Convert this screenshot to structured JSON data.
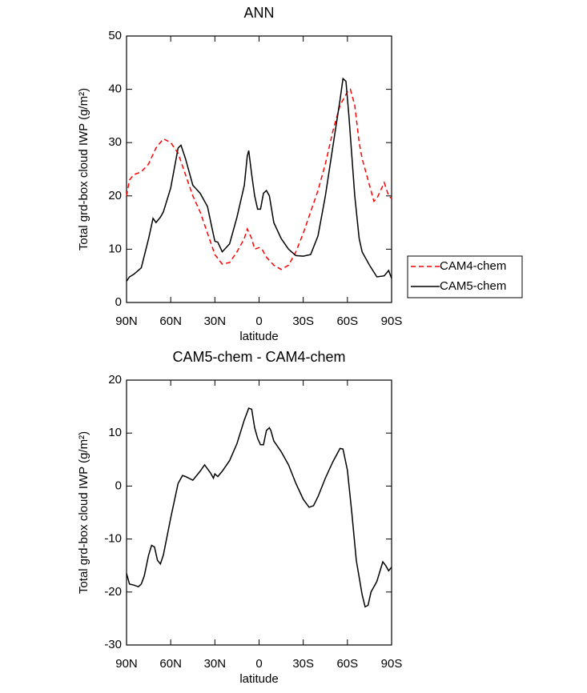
{
  "chart_data": [
    {
      "type": "line",
      "title": "ANN",
      "xlabel": "latitude",
      "ylabel": "Total grd-box cloud IWP (g/m²)",
      "xlim": [
        90,
        -90
      ],
      "xticks": [
        {
          "value": 90,
          "label": "90N"
        },
        {
          "value": 60,
          "label": "60N"
        },
        {
          "value": 30,
          "label": "30N"
        },
        0,
        {
          "value": -30,
          "label": "30S"
        },
        {
          "value": -60,
          "label": "60S"
        },
        {
          "value": -90,
          "label": "90S"
        }
      ],
      "ylim": [
        0,
        50
      ],
      "yticks": [
        0,
        10,
        20,
        30,
        40,
        50
      ],
      "legend": "right",
      "series": [
        {
          "name": "CAM4-chem",
          "color": "#ff0000",
          "line_style": "dashed",
          "x": [
            90,
            88,
            85,
            80,
            75,
            70,
            65,
            60,
            55,
            50,
            45,
            40,
            35,
            30,
            25,
            20,
            15,
            10,
            8,
            5,
            3,
            0,
            -2,
            -5,
            -10,
            -15,
            -20,
            -25,
            -30,
            -35,
            -40,
            -45,
            -50,
            -55,
            -60,
            -62,
            -65,
            -68,
            -70,
            -75,
            -78,
            -80,
            -85,
            -88,
            -90
          ],
          "values": [
            20,
            23,
            24,
            24.5,
            26,
            29,
            30.7,
            30,
            28,
            24,
            20,
            17,
            13,
            9,
            7.2,
            7.5,
            9.5,
            12,
            13.8,
            12,
            10,
            10.3,
            10,
            8.5,
            7,
            6.2,
            7,
            9.5,
            13,
            17,
            21,
            26,
            32,
            37,
            39.5,
            40,
            37,
            30,
            27,
            22,
            19,
            19.5,
            22.5,
            20,
            19.5
          ]
        },
        {
          "name": "CAM5-chem",
          "color": "#000000",
          "line_style": "solid",
          "x": [
            90,
            88,
            85,
            80,
            75,
            72,
            70,
            67,
            65,
            60,
            55,
            53,
            50,
            45,
            40,
            35,
            32,
            30,
            28,
            25,
            20,
            15,
            10,
            8,
            7,
            5,
            3,
            1,
            -1,
            -3,
            -5,
            -7,
            -10,
            -15,
            -20,
            -25,
            -30,
            -35,
            -40,
            -45,
            -50,
            -55,
            -57,
            -59,
            -61,
            -65,
            -68,
            -70,
            -75,
            -80,
            -85,
            -88,
            -90
          ],
          "values": [
            4,
            4.8,
            5.3,
            6.5,
            12,
            15.8,
            15,
            16,
            17,
            21.5,
            29,
            29.5,
            27,
            22,
            20.5,
            18,
            14,
            11.5,
            11.3,
            9.5,
            11,
            16,
            22,
            27.5,
            28.5,
            24,
            20,
            17.5,
            17.5,
            20.5,
            21,
            20,
            15,
            12,
            10,
            8.8,
            8.7,
            9,
            12.5,
            20,
            29,
            38,
            42,
            41.5,
            35,
            20,
            12,
            9.5,
            7,
            4.8,
            5,
            6,
            4.5
          ]
        }
      ]
    },
    {
      "type": "line",
      "title": "CAM5-chem - CAM4-chem",
      "xlabel": "latitude",
      "ylabel": "Total grd-box cloud IWP (g/m²)",
      "xlim": [
        90,
        -90
      ],
      "xticks": [
        {
          "value": 90,
          "label": "90N"
        },
        {
          "value": 60,
          "label": "60N"
        },
        {
          "value": 30,
          "label": "30N"
        },
        0,
        {
          "value": -30,
          "label": "30S"
        },
        {
          "value": -60,
          "label": "60S"
        },
        {
          "value": -90,
          "label": "90S"
        }
      ],
      "ylim": [
        -30,
        20
      ],
      "yticks": [
        -30,
        -20,
        -10,
        0,
        10,
        20
      ],
      "series": [
        {
          "color": "#000000",
          "line_style": "solid",
          "x": [
            90,
            88,
            85,
            82,
            80,
            78,
            75,
            73,
            71,
            69,
            67,
            65,
            60,
            55,
            52,
            50,
            45,
            40,
            37,
            33,
            31,
            30,
            28,
            25,
            20,
            15,
            10,
            7,
            5,
            3,
            1,
            -1,
            -3,
            -5,
            -7,
            -8,
            -10,
            -15,
            -20,
            -25,
            -30,
            -34,
            -37,
            -40,
            -45,
            -50,
            -55,
            -57,
            -60,
            -63,
            -66,
            -70,
            -72,
            -74,
            -76,
            -80,
            -84,
            -86,
            -88,
            -90
          ],
          "values": [
            -16.5,
            -18.5,
            -18.7,
            -19,
            -18.5,
            -17,
            -13,
            -11.2,
            -11.5,
            -14,
            -14.7,
            -13,
            -6,
            0.5,
            2,
            1.8,
            1.1,
            2.8,
            4,
            2.5,
            1.5,
            2.3,
            1.8,
            2.8,
            4.8,
            8,
            12.5,
            14.7,
            14.5,
            11,
            9,
            7.8,
            7.8,
            10.5,
            11,
            10.5,
            8.5,
            6.5,
            4,
            0.5,
            -2.5,
            -4,
            -3.7,
            -2,
            1.5,
            4.5,
            7.1,
            7,
            3,
            -5,
            -14,
            -20.5,
            -22.8,
            -22.5,
            -20,
            -18,
            -14.3,
            -15,
            -16,
            -15.3
          ]
        }
      ]
    }
  ]
}
